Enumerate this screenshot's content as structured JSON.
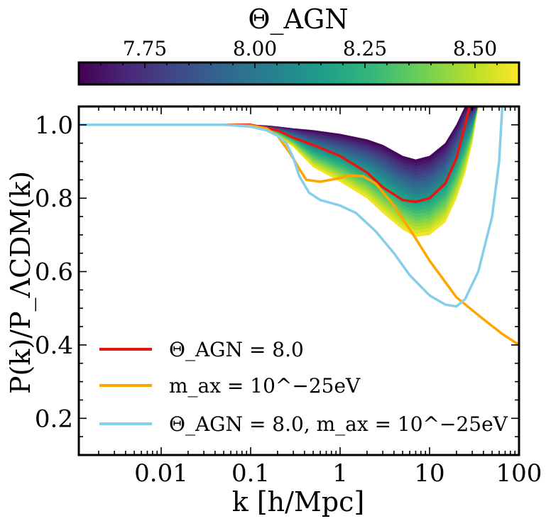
{
  "chart_data": {
    "type": "line",
    "title": "",
    "xlabel": "k [h/Mpc]",
    "ylabel": "P(k)/P_ΛCDM(k)",
    "xscale": "log",
    "xlim": [
      0.0012,
      100
    ],
    "ylim": [
      0.1,
      1.05
    ],
    "xticks": [
      {
        "value": 0.01,
        "label": "0.01"
      },
      {
        "value": 0.1,
        "label": "0.1"
      },
      {
        "value": 1,
        "label": "1"
      },
      {
        "value": 10,
        "label": "10"
      },
      {
        "value": 100,
        "label": "100"
      }
    ],
    "yticks": [
      {
        "value": 0.2,
        "label": "0.2"
      },
      {
        "value": 0.4,
        "label": "0.4"
      },
      {
        "value": 0.6,
        "label": "0.6"
      },
      {
        "value": 0.8,
        "label": "0.8"
      },
      {
        "value": 1.0,
        "label": "1.0"
      }
    ],
    "colorbar": {
      "label": "Θ_AGN",
      "range": [
        7.6,
        8.6
      ],
      "ticks": [
        {
          "value": 7.75,
          "label": "7.75"
        },
        {
          "value": 8.0,
          "label": "8.00"
        },
        {
          "value": 8.25,
          "label": "8.25"
        },
        {
          "value": 8.5,
          "label": "8.50"
        }
      ],
      "colormap": [
        "#440154",
        "#482878",
        "#3e4989",
        "#31688e",
        "#26828e",
        "#1f9e89",
        "#35b779",
        "#6ece58",
        "#b5de2b",
        "#fde725"
      ]
    },
    "band": {
      "name": "Θ_AGN range 7.6–8.6",
      "x": [
        0.0012,
        0.01,
        0.05,
        0.1,
        0.15,
        0.2,
        0.3,
        0.5,
        1,
        2,
        3,
        5,
        7,
        10,
        15,
        20,
        25,
        30,
        35
      ],
      "upper": [
        1.0,
        1.0,
        1.0,
        1.0,
        0.998,
        0.995,
        0.99,
        0.985,
        0.975,
        0.96,
        0.945,
        0.915,
        0.905,
        0.915,
        0.95,
        1.0,
        1.05,
        1.05,
        1.05
      ],
      "lower": [
        1.0,
        1.0,
        1.0,
        0.995,
        0.985,
        0.97,
        0.94,
        0.885,
        0.845,
        0.8,
        0.76,
        0.715,
        0.695,
        0.7,
        0.735,
        0.8,
        0.87,
        0.95,
        1.05
      ]
    },
    "series": [
      {
        "name": "Θ_AGN = 8.0",
        "color": "#e8150f",
        "x": [
          0.0012,
          0.01,
          0.05,
          0.1,
          0.2,
          0.3,
          0.5,
          1,
          2,
          3,
          5,
          7,
          10,
          15,
          20,
          25,
          28
        ],
        "y": [
          1.0,
          1.0,
          1.0,
          1.0,
          0.985,
          0.965,
          0.945,
          0.915,
          0.87,
          0.83,
          0.795,
          0.79,
          0.8,
          0.84,
          0.91,
          1.0,
          1.05
        ]
      },
      {
        "name": "m_ax = 10^-25 eV",
        "color": "#ffa500",
        "x": [
          0.0012,
          0.01,
          0.05,
          0.1,
          0.15,
          0.2,
          0.28,
          0.35,
          0.42,
          0.6,
          1.0,
          1.2,
          1.8,
          2.5,
          4,
          7,
          10,
          20,
          40,
          65,
          100
        ],
        "y": [
          1.0,
          1.0,
          1.0,
          0.998,
          0.99,
          0.97,
          0.92,
          0.88,
          0.85,
          0.845,
          0.855,
          0.862,
          0.86,
          0.84,
          0.78,
          0.69,
          0.63,
          0.53,
          0.47,
          0.43,
          0.4
        ]
      },
      {
        "name": "Θ_AGN = 8.0, m_ax = 10^-25 eV",
        "color": "#87ceeb",
        "x": [
          0.0012,
          0.01,
          0.05,
          0.1,
          0.15,
          0.2,
          0.25,
          0.3,
          0.35,
          0.45,
          0.6,
          1.0,
          1.5,
          2.5,
          4,
          6,
          10,
          15,
          20,
          25,
          35,
          50,
          60,
          65
        ],
        "y": [
          1.0,
          1.0,
          1.0,
          0.995,
          0.985,
          0.97,
          0.95,
          0.91,
          0.86,
          0.815,
          0.795,
          0.78,
          0.76,
          0.71,
          0.65,
          0.59,
          0.535,
          0.51,
          0.505,
          0.525,
          0.6,
          0.75,
          0.9,
          1.05
        ]
      }
    ],
    "legend": {
      "placement": "lower-left",
      "entries": [
        {
          "label": "Θ_AGN = 8.0",
          "color": "#e8150f"
        },
        {
          "label": "m_ax = 10^−25eV",
          "color": "#ffa500"
        },
        {
          "label": "Θ_AGN = 8.0, m_ax = 10^−25eV",
          "color": "#87ceeb"
        }
      ]
    }
  }
}
